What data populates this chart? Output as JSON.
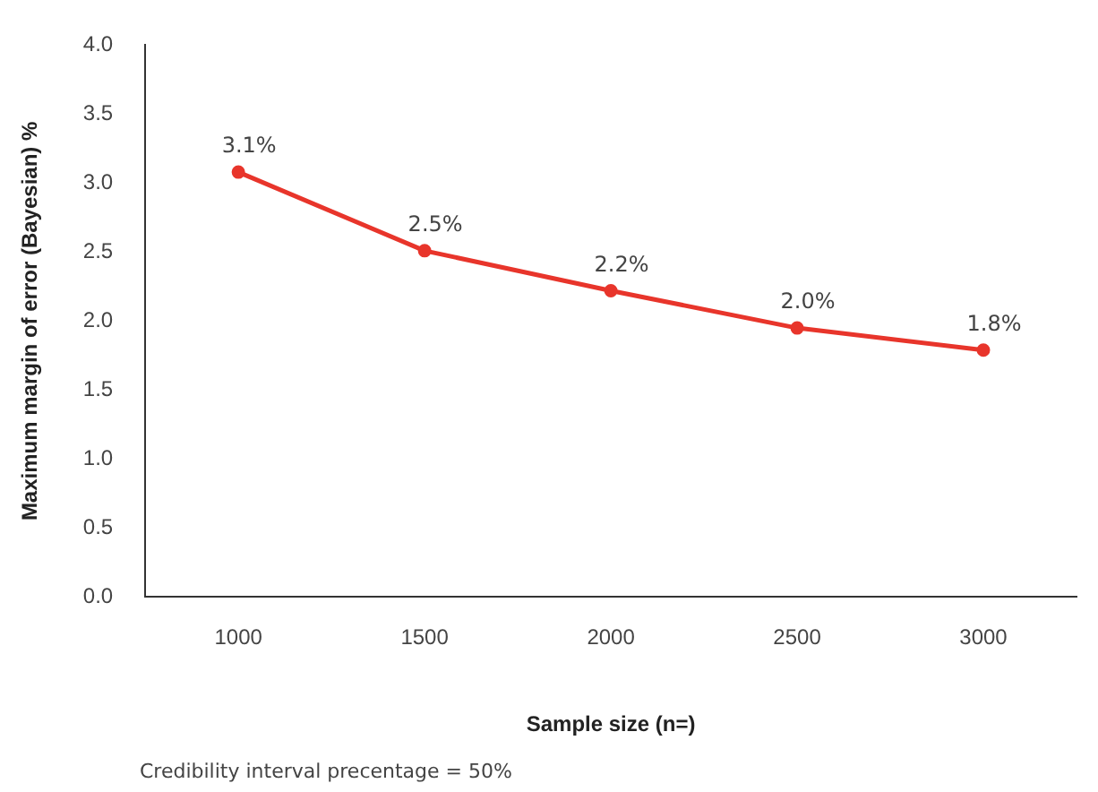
{
  "chart_data": {
    "type": "line",
    "xlabel": "Sample size (n=)",
    "ylabel": "Maximum margin of error (Bayesian) %",
    "categories": [
      "1000",
      "1500",
      "2000",
      "2500",
      "3000"
    ],
    "series": [
      {
        "color": "#e8352b",
        "values": [
          3.08,
          2.51,
          2.22,
          1.95,
          1.79
        ],
        "value_labels": [
          "3.1%",
          "2.5%",
          "2.2%",
          "2.0%",
          "1.8%"
        ]
      }
    ],
    "ylim": [
      0,
      4
    ],
    "yticks": [
      {
        "value": 0,
        "label": "0.0"
      },
      {
        "value": 0.5,
        "label": "0.5"
      },
      {
        "value": 1,
        "label": "1.0"
      },
      {
        "value": 1.5,
        "label": "1.5"
      },
      {
        "value": 2,
        "label": "2.0"
      },
      {
        "value": 2.5,
        "label": "2.5"
      },
      {
        "value": 3,
        "label": "3.0"
      },
      {
        "value": 3.5,
        "label": "3.5"
      },
      {
        "value": 4,
        "label": "4.0"
      }
    ],
    "grid": false,
    "legend": false,
    "marker": "circle",
    "line_style": "solid",
    "annotations": [
      "Credibility interval precentage = 50%"
    ]
  }
}
